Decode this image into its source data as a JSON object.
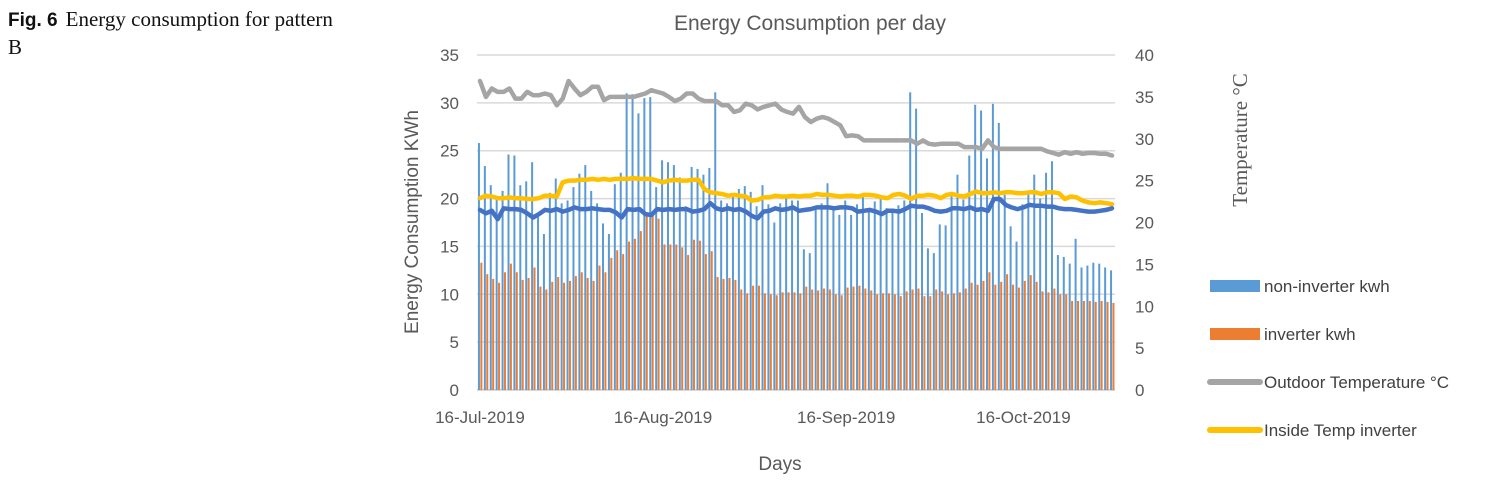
{
  "caption": {
    "fig_label": "Fig. 6",
    "text": "Energy consumption for pattern B"
  },
  "chart_data": {
    "type": "bar",
    "title": "Energy Consumption per day",
    "xlabel": "Days",
    "ylabel": "Energy Consumption KWh",
    "y2label": "Temperature °C",
    "ylim": [
      0,
      35
    ],
    "y2lim": [
      0,
      40
    ],
    "yticks": [
      "0",
      "5",
      "10",
      "15",
      "20",
      "25",
      "30",
      "35"
    ],
    "y2ticks": [
      "0",
      "5",
      "10",
      "15",
      "20",
      "25",
      "30",
      "35",
      "40"
    ],
    "grid": true,
    "legend_position": "right",
    "start_date": "16-Jul-2019",
    "num_days": 108,
    "xticks": [
      {
        "label": "16-Jul-2019",
        "day": 0
      },
      {
        "label": "16-Aug-2019",
        "day": 31
      },
      {
        "label": "16-Sep-2019",
        "day": 62
      },
      {
        "label": "16-Oct-2019",
        "day": 92
      }
    ],
    "series": [
      {
        "name": "non-inverter kwh",
        "kind": "bar",
        "axis": "left",
        "color": "#5b9bd5",
        "values": [
          25.8,
          23.4,
          21.4,
          19.9,
          20.8,
          24.6,
          24.5,
          21.4,
          21.8,
          23.8,
          18.1,
          16.3,
          20.6,
          22.1,
          19.5,
          19.8,
          21.2,
          22.6,
          23.5,
          20.8,
          19.5,
          17.4,
          16.3,
          21.5,
          22.7,
          31.0,
          30.9,
          28.9,
          30.5,
          30.6,
          21.2,
          24.0,
          23.8,
          23.5,
          22.2,
          19.2,
          23.3,
          23.1,
          22.5,
          23.2,
          31.1,
          19.8,
          19.5,
          20.4,
          21.0,
          21.3,
          20.7,
          19.2,
          21.4,
          19.4,
          17.5,
          19.5,
          20.3,
          19.8,
          19.8,
          14.7,
          14.3,
          18.9,
          19.5,
          21.6,
          19.0,
          18.3,
          19.8,
          18.3,
          19.4,
          20.4,
          18.7,
          19.7,
          20.1,
          19.0,
          18.5,
          19.3,
          19.8,
          31.1,
          29.4,
          18.5,
          14.8,
          14.3,
          17.3,
          17.2,
          20.7,
          22.5,
          19.9,
          24.5,
          29.8,
          29.2,
          24.2,
          29.9,
          27.9,
          20.4,
          17.1,
          15.5,
          19.4,
          20.5,
          22.5,
          20.0,
          22.7,
          23.9,
          14.1,
          13.9,
          13.2,
          15.8,
          12.8,
          13.0,
          13.3,
          13.2,
          12.8,
          12.5
        ]
      },
      {
        "name": "inverter kwh",
        "kind": "bar",
        "axis": "left",
        "color": "#ed7d31",
        "values": [
          13.3,
          12.1,
          11.6,
          11.2,
          12.3,
          13.2,
          12.3,
          11.5,
          11.7,
          12.8,
          10.8,
          10.5,
          11.3,
          11.8,
          11.2,
          11.4,
          11.9,
          12.3,
          11.7,
          11.4,
          13.0,
          12.3,
          13.8,
          14.6,
          14.2,
          15.5,
          15.8,
          16.6,
          18.5,
          18.4,
          17.9,
          15.2,
          15.2,
          15.2,
          14.9,
          14.1,
          15.7,
          15.6,
          14.2,
          14.5,
          11.8,
          11.6,
          11.7,
          11.5,
          10.5,
          10.1,
          10.9,
          10.9,
          10.1,
          10.0,
          9.9,
          10.2,
          10.2,
          10.2,
          10.1,
          10.8,
          10.5,
          10.4,
          10.6,
          10.5,
          10.0,
          9.9,
          10.7,
          10.8,
          10.9,
          10.6,
          10.4,
          10.0,
          10.1,
          10.1,
          10.0,
          9.8,
          10.3,
          10.5,
          10.6,
          9.8,
          9.8,
          10.5,
          10.3,
          10.0,
          10.1,
          10.2,
          10.6,
          11.2,
          11.0,
          11.4,
          12.3,
          11.0,
          11.3,
          12.1,
          11.0,
          10.7,
          11.4,
          12.0,
          11.3,
          10.3,
          10.2,
          10.6,
          10.0,
          10.0,
          9.3,
          9.3,
          9.3,
          9.3,
          9.2,
          9.3,
          9.2,
          9.1
        ]
      },
      {
        "name": "Outdoor Temperature °C",
        "kind": "line",
        "axis": "right",
        "color": "#a5a5a5",
        "values": [
          36.9,
          35.0,
          36.0,
          35.6,
          35.6,
          36.0,
          34.8,
          34.8,
          35.6,
          35.2,
          35.2,
          35.4,
          35.2,
          34.0,
          34.8,
          36.9,
          36.0,
          35.2,
          35.6,
          36.2,
          36.2,
          34.6,
          35.0,
          35.0,
          35.0,
          35.0,
          35.0,
          35.2,
          35.4,
          35.8,
          35.6,
          35.4,
          35.0,
          34.5,
          34.8,
          35.4,
          35.4,
          34.8,
          34.5,
          34.5,
          34.5,
          34.0,
          34.0,
          33.2,
          33.4,
          34.2,
          34.0,
          33.5,
          33.8,
          34.0,
          34.2,
          33.5,
          33.2,
          33.0,
          33.8,
          32.6,
          32.0,
          32.4,
          32.6,
          32.4,
          32.0,
          31.6,
          30.3,
          30.4,
          30.3,
          29.8,
          29.8,
          29.8,
          29.8,
          29.8,
          29.8,
          29.8,
          29.8,
          29.8,
          29.4,
          29.8,
          29.4,
          29.3,
          29.4,
          29.4,
          29.4,
          29.4,
          29.0,
          29.0,
          29.0,
          28.8,
          29.8,
          29.0,
          28.8,
          28.8,
          28.8,
          28.8,
          28.8,
          28.8,
          28.8,
          28.8,
          28.5,
          28.3,
          28.1,
          28.4,
          28.2,
          28.4,
          28.2,
          28.3,
          28.3,
          28.2,
          28.2,
          28.0
        ]
      },
      {
        "name": "Inside Temp inverter",
        "kind": "line",
        "axis": "right",
        "color": "#ffc000",
        "values": [
          22.9,
          23.2,
          23.1,
          22.9,
          22.9,
          23.0,
          22.9,
          22.9,
          22.8,
          22.8,
          22.9,
          23.2,
          23.2,
          23.1,
          24.8,
          25.0,
          25.0,
          25.1,
          25.1,
          25.2,
          25.1,
          25.2,
          25.1,
          25.2,
          25.2,
          25.2,
          25.3,
          25.2,
          25.2,
          25.2,
          25.0,
          24.8,
          25.0,
          25.1,
          25.0,
          25.0,
          25.1,
          25.1,
          24.0,
          23.6,
          23.5,
          23.4,
          23.2,
          23.3,
          23.2,
          23.1,
          22.6,
          22.7,
          23.0,
          23.0,
          23.2,
          23.1,
          23.1,
          23.2,
          23.1,
          23.2,
          23.2,
          23.4,
          23.3,
          23.3,
          23.2,
          23.1,
          23.2,
          23.2,
          23.1,
          23.3,
          23.3,
          23.2,
          23.0,
          22.9,
          23.3,
          23.4,
          23.2,
          22.8,
          23.2,
          23.2,
          23.3,
          23.2,
          22.9,
          23.3,
          23.4,
          23.2,
          23.1,
          23.4,
          23.7,
          23.5,
          23.5,
          23.6,
          23.5,
          23.6,
          23.6,
          23.5,
          23.5,
          23.6,
          23.6,
          23.4,
          23.6,
          23.6,
          23.5,
          22.8,
          23.1,
          23.0,
          22.6,
          22.4,
          22.3,
          22.4,
          22.3,
          22.2
        ]
      },
      {
        "name": "",
        "kind": "line",
        "axis": "right",
        "color": "#4472c4",
        "values": [
          21.5,
          21.1,
          21.4,
          20.4,
          21.7,
          21.6,
          21.6,
          21.5,
          21.1,
          20.6,
          21.0,
          21.5,
          21.4,
          21.6,
          21.3,
          21.5,
          21.8,
          21.6,
          21.6,
          21.7,
          21.6,
          21.5,
          21.5,
          21.2,
          20.6,
          21.6,
          21.5,
          21.6,
          21.0,
          20.9,
          21.6,
          21.5,
          21.6,
          21.5,
          21.6,
          21.6,
          21.3,
          21.4,
          21.6,
          22.3,
          21.7,
          21.5,
          21.7,
          21.5,
          21.6,
          21.3,
          20.8,
          20.5,
          21.3,
          21.4,
          21.7,
          21.5,
          21.6,
          21.8,
          21.4,
          21.5,
          21.6,
          21.8,
          21.8,
          21.8,
          21.7,
          21.8,
          21.8,
          21.7,
          21.3,
          21.4,
          21.5,
          21.3,
          21.0,
          21.4,
          21.4,
          21.3,
          21.6,
          22.0,
          21.9,
          21.9,
          21.7,
          21.4,
          21.3,
          21.4,
          21.7,
          21.7,
          21.6,
          21.8,
          21.5,
          21.6,
          21.4,
          22.8,
          22.8,
          22.1,
          21.8,
          21.6,
          21.8,
          22.1,
          22.0,
          22.0,
          21.9,
          21.9,
          21.7,
          21.6,
          21.6,
          21.5,
          21.4,
          21.3,
          21.3,
          21.4,
          21.5,
          21.7
        ]
      }
    ]
  }
}
